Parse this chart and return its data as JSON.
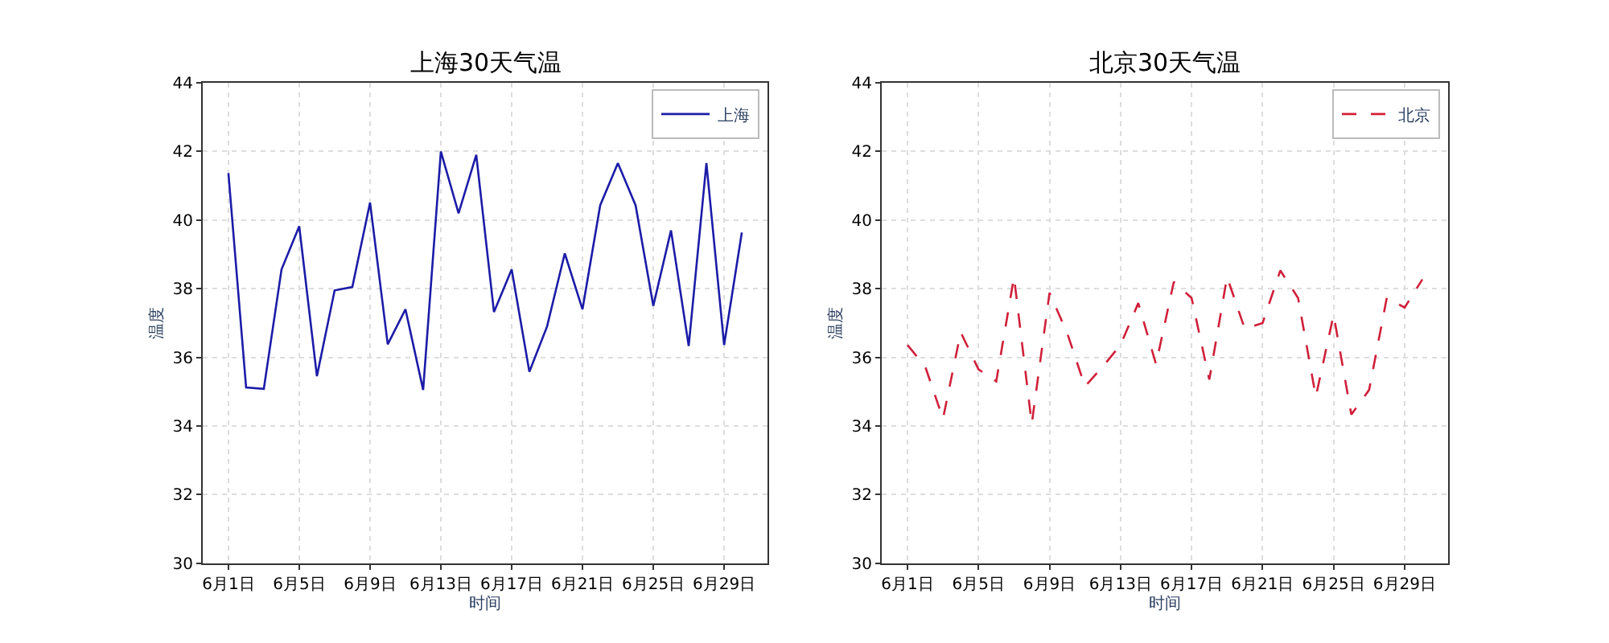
{
  "chart_data": [
    {
      "type": "line",
      "title": "上海30天气温",
      "xlabel": "时间",
      "ylabel": "温度",
      "categories": [
        "6月1日",
        null,
        null,
        null,
        "6月5日",
        null,
        null,
        null,
        "6月9日",
        null,
        null,
        null,
        "6月13日",
        null,
        null,
        null,
        "6月17日",
        null,
        null,
        null,
        "6月21日",
        null,
        null,
        null,
        "6月25日",
        null,
        null,
        null,
        "6月29日",
        null
      ],
      "series": [
        {
          "name": "上海",
          "color": "#1c1ca8",
          "values": [
            41.37,
            35.12,
            35.08,
            38.56,
            39.82,
            35.45,
            37.95,
            38.05,
            40.51,
            36.38,
            37.4,
            35.05,
            42.0,
            40.2,
            41.9,
            37.32,
            38.56,
            35.58,
            36.9,
            39.03,
            37.4,
            40.43,
            41.66,
            40.43,
            37.5,
            39.7,
            36.33,
            41.66,
            36.36,
            39.64
          ]
        }
      ],
      "ylim": [
        30,
        44
      ],
      "yticks": [
        30,
        32,
        34,
        36,
        38,
        40,
        42,
        44
      ],
      "grid": true,
      "legend": "top right",
      "line_style": "solid"
    },
    {
      "type": "line",
      "title": "北京30天气温",
      "xlabel": "时间",
      "ylabel": "温度",
      "categories": [
        "6月1日",
        null,
        null,
        null,
        "6月5日",
        null,
        null,
        null,
        "6月9日",
        null,
        null,
        null,
        "6月13日",
        null,
        null,
        null,
        "6月17日",
        null,
        null,
        null,
        "6月21日",
        null,
        null,
        null,
        "6月25日",
        null,
        null,
        null,
        "6月29日",
        null
      ],
      "series": [
        {
          "name": "北京",
          "color": "#d0203a",
          "values": [
            36.36,
            35.73,
            34.21,
            36.73,
            35.65,
            35.3,
            38.34,
            34.06,
            37.88,
            36.7,
            35.15,
            35.73,
            36.36,
            37.58,
            35.8,
            38.2,
            37.73,
            35.35,
            38.34,
            36.83,
            37.0,
            38.53,
            37.73,
            34.85,
            37.24,
            34.33,
            35.05,
            37.74,
            37.45,
            38.27
          ]
        }
      ],
      "ylim": [
        30,
        44
      ],
      "yticks": [
        30,
        32,
        34,
        36,
        38,
        40,
        42,
        44
      ],
      "grid": true,
      "legend": "top right",
      "line_style": "dashed"
    }
  ]
}
